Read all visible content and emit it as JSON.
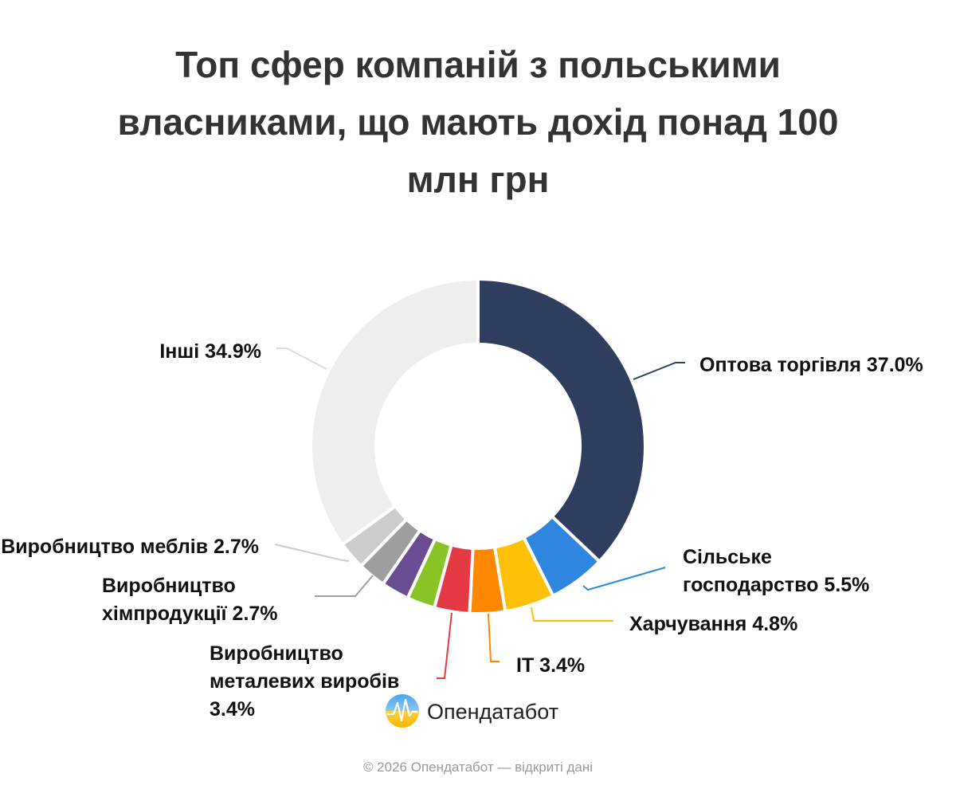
{
  "chart_data": {
    "type": "donut",
    "title": "Топ сфер компаній з польськими власниками, що мають дохід понад 100 млн грн",
    "slices": [
      {
        "label": [
          "Оптова торгівля 37.0%"
        ],
        "value": 37.0,
        "color": "#2f3e5f"
      },
      {
        "label": [
          "Сільське",
          "господарство 5.5%"
        ],
        "value": 5.5,
        "color": "#2e86de"
      },
      {
        "label": [
          "Харчування 4.8%"
        ],
        "value": 4.8,
        "color": "#ffc107"
      },
      {
        "label": [
          "IT 3.4%"
        ],
        "value": 3.4,
        "color": "#ff8800"
      },
      {
        "label": [
          "Виробництво",
          "металевих виробів",
          "3.4%"
        ],
        "value": 3.4,
        "color": "#e63946"
      },
      {
        "label": [],
        "value": 2.7,
        "color": "#88c425"
      },
      {
        "label": [],
        "value": 2.7,
        "color": "#6a4c93"
      },
      {
        "label": [
          "Виробництво",
          "хімпродукції 2.7%"
        ],
        "value": 2.7,
        "color": "#9e9e9e"
      },
      {
        "label": [
          "Виробництво меблів 2.7%"
        ],
        "value": 2.7,
        "color": "#cccccc"
      },
      {
        "label": [
          "Інші 34.9%"
        ],
        "value": 34.9,
        "color": "#eeeeee"
      }
    ]
  },
  "logo": {
    "name": "Опендатабот",
    "icon": "opendatabot-logo-icon"
  },
  "footer": "© 2026 Опендатабот — відкриті дані"
}
